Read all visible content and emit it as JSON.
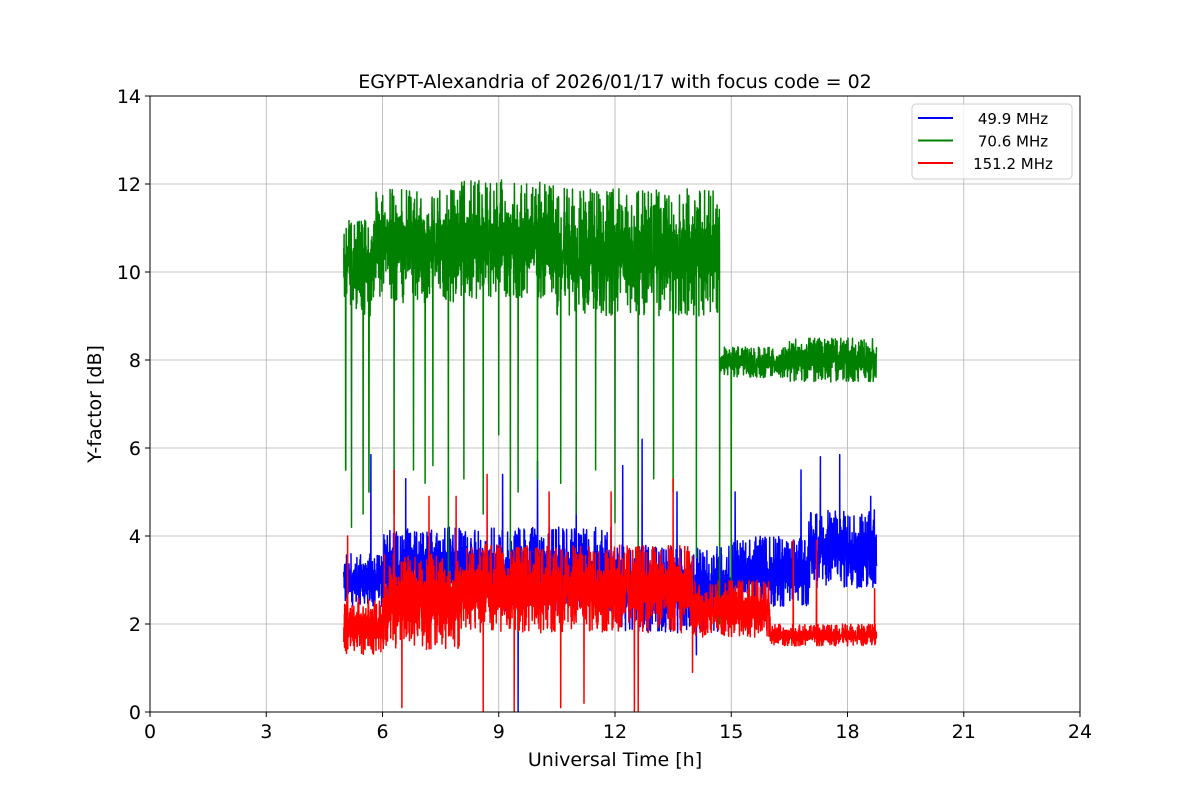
{
  "chart_data": {
    "type": "line",
    "title": "EGYPT-Alexandria of 2026/01/17 with focus code = 02",
    "xlabel": "Universal Time [h]",
    "ylabel": "Y-factor [dB]",
    "xlim": [
      0,
      24
    ],
    "ylim": [
      0,
      14
    ],
    "xticks": [
      0,
      3,
      6,
      9,
      12,
      15,
      18,
      21,
      24
    ],
    "yticks": [
      0,
      2,
      4,
      6,
      8,
      10,
      12,
      14
    ],
    "grid": true,
    "legend_position": "top-right",
    "series": [
      {
        "name": "49.9 MHz",
        "color": "#0000ff",
        "x_range": [
          5.0,
          18.75
        ],
        "bands": [
          {
            "from": 5.0,
            "to": 6.0,
            "low": 2.4,
            "high": 3.6
          },
          {
            "from": 6.0,
            "to": 12.0,
            "low": 2.3,
            "high": 4.2
          },
          {
            "from": 12.0,
            "to": 15.0,
            "low": 1.8,
            "high": 3.8
          },
          {
            "from": 15.0,
            "to": 17.0,
            "low": 2.4,
            "high": 4.0
          },
          {
            "from": 17.0,
            "to": 18.75,
            "low": 2.8,
            "high": 4.6
          }
        ],
        "spikes": [
          [
            5.7,
            5.85
          ],
          [
            6.6,
            5.3
          ],
          [
            9.1,
            5.4
          ],
          [
            10.0,
            5.7
          ],
          [
            11.0,
            5.0
          ],
          [
            12.2,
            5.6
          ],
          [
            12.7,
            6.2
          ],
          [
            13.6,
            5.0
          ],
          [
            15.1,
            5.0
          ],
          [
            16.8,
            5.5
          ],
          [
            17.3,
            5.8
          ],
          [
            17.8,
            5.85
          ],
          [
            18.6,
            4.9
          ],
          [
            9.5,
            0.0
          ],
          [
            14.1,
            1.3
          ]
        ]
      },
      {
        "name": "70.6 MHz",
        "color": "#008000",
        "x_range": [
          5.0,
          18.75
        ],
        "bands": [
          {
            "from": 5.0,
            "to": 5.8,
            "low": 9.0,
            "high": 11.2
          },
          {
            "from": 5.8,
            "to": 8.0,
            "low": 9.3,
            "high": 11.9
          },
          {
            "from": 8.0,
            "to": 10.5,
            "low": 9.4,
            "high": 12.1
          },
          {
            "from": 10.5,
            "to": 14.7,
            "low": 9.0,
            "high": 11.9
          },
          {
            "from": 14.7,
            "to": 16.5,
            "low": 7.6,
            "high": 8.3
          },
          {
            "from": 16.5,
            "to": 18.75,
            "low": 7.5,
            "high": 8.5
          }
        ],
        "spikes": [
          [
            5.05,
            5.5
          ],
          [
            5.2,
            4.2
          ],
          [
            5.5,
            4.5
          ],
          [
            5.65,
            5.0
          ],
          [
            6.3,
            4.5
          ],
          [
            6.8,
            5.5
          ],
          [
            7.1,
            5.2
          ],
          [
            7.3,
            5.6
          ],
          [
            7.7,
            3.0
          ],
          [
            8.1,
            5.3
          ],
          [
            8.6,
            4.5
          ],
          [
            9.0,
            6.3
          ],
          [
            9.3,
            3.5
          ],
          [
            9.5,
            5.0
          ],
          [
            10.0,
            5.3
          ],
          [
            10.6,
            5.2
          ],
          [
            11.0,
            4.5
          ],
          [
            11.5,
            5.5
          ],
          [
            12.0,
            4.3
          ],
          [
            12.6,
            0.5
          ],
          [
            13.0,
            5.3
          ],
          [
            13.5,
            5.0
          ],
          [
            14.1,
            3.5
          ],
          [
            14.7,
            2.0
          ],
          [
            15.0,
            3.0
          ]
        ]
      },
      {
        "name": "151.2 MHz",
        "color": "#ff0000",
        "x_range": [
          5.0,
          18.75
        ],
        "bands": [
          {
            "from": 5.0,
            "to": 6.0,
            "low": 1.3,
            "high": 2.6
          },
          {
            "from": 6.0,
            "to": 8.0,
            "low": 1.4,
            "high": 3.6
          },
          {
            "from": 8.0,
            "to": 14.0,
            "low": 1.8,
            "high": 3.8
          },
          {
            "from": 14.0,
            "to": 16.0,
            "low": 1.7,
            "high": 3.0
          },
          {
            "from": 16.0,
            "to": 18.75,
            "low": 1.5,
            "high": 2.0
          }
        ],
        "spikes": [
          [
            5.1,
            4.0
          ],
          [
            6.3,
            5.5
          ],
          [
            6.5,
            0.1
          ],
          [
            7.2,
            4.9
          ],
          [
            7.9,
            4.9
          ],
          [
            8.6,
            0.0
          ],
          [
            8.7,
            5.4
          ],
          [
            9.4,
            0.0
          ],
          [
            10.3,
            5.0
          ],
          [
            10.6,
            0.1
          ],
          [
            11.2,
            0.2
          ],
          [
            11.9,
            5.0
          ],
          [
            12.5,
            0.0
          ],
          [
            12.6,
            0.0
          ],
          [
            13.5,
            5.3
          ],
          [
            14.0,
            0.9
          ],
          [
            16.6,
            3.9
          ],
          [
            17.2,
            3.9
          ],
          [
            18.7,
            2.8
          ]
        ]
      }
    ]
  }
}
